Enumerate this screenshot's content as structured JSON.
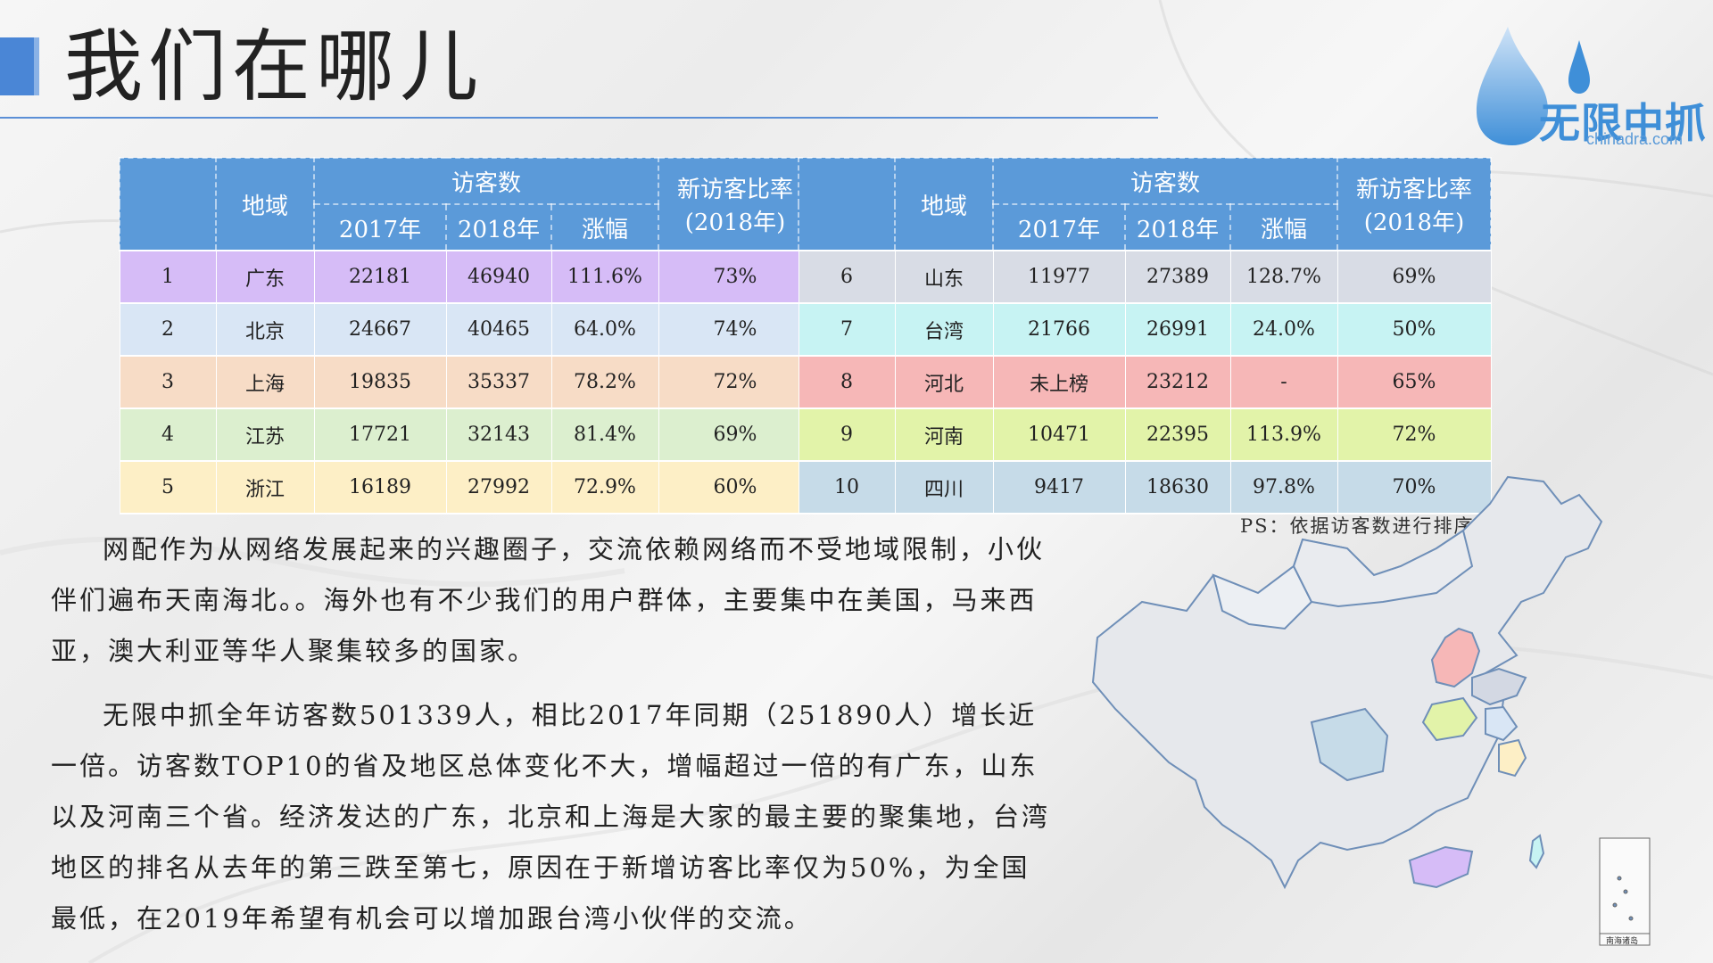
{
  "title": "我们在哪儿",
  "logo": {
    "name": "无限中抓",
    "site": "chinadra.com"
  },
  "tables": {
    "headers": {
      "rank": "",
      "region": "地域",
      "visitors": "访客数",
      "year2017": "2017年",
      "year2018": "2018年",
      "growth": "涨幅",
      "new_ratio": "新访客比率",
      "new_ratio_year": "(2018年)"
    },
    "left_rows": [
      {
        "rank": "1",
        "region": "广东",
        "y2017": "22181",
        "y2018": "46940",
        "growth": "111.6%",
        "new_ratio": "73%"
      },
      {
        "rank": "2",
        "region": "北京",
        "y2017": "24667",
        "y2018": "40465",
        "growth": "64.0%",
        "new_ratio": "74%"
      },
      {
        "rank": "3",
        "region": "上海",
        "y2017": "19835",
        "y2018": "35337",
        "growth": "78.2%",
        "new_ratio": "72%"
      },
      {
        "rank": "4",
        "region": "江苏",
        "y2017": "17721",
        "y2018": "32143",
        "growth": "81.4%",
        "new_ratio": "69%"
      },
      {
        "rank": "5",
        "region": "浙江",
        "y2017": "16189",
        "y2018": "27992",
        "growth": "72.9%",
        "new_ratio": "60%"
      }
    ],
    "right_rows": [
      {
        "rank": "6",
        "region": "山东",
        "y2017": "11977",
        "y2018": "27389",
        "growth": "128.7%",
        "new_ratio": "69%"
      },
      {
        "rank": "7",
        "region": "台湾",
        "y2017": "21766",
        "y2018": "26991",
        "growth": "24.0%",
        "new_ratio": "50%"
      },
      {
        "rank": "8",
        "region": "河北",
        "y2017": "未上榜",
        "y2018": "23212",
        "growth": "-",
        "new_ratio": "65%"
      },
      {
        "rank": "9",
        "region": "河南",
        "y2017": "10471",
        "y2018": "22395",
        "growth": "113.9%",
        "new_ratio": "72%"
      },
      {
        "rank": "10",
        "region": "四川",
        "y2017": "9417",
        "y2018": "18630",
        "growth": "97.8%",
        "new_ratio": "70%"
      }
    ]
  },
  "ps_note": "PS：依据访客数进行排序",
  "paragraphs": [
    "网配作为从网络发展起来的兴趣圈子，交流依赖网络而不受地域限制，小伙伴们遍布天南海北。。海外也有不少我们的用户群体，主要集中在美国，马来西亚，澳大利亚等华人聚集较多的国家。",
    "无限中抓全年访客数501339人，相比2017年同期（251890人）增长近一倍。访客数TOP10的省及地区总体变化不大，增幅超过一倍的有广东，山东以及河南三个省。经济发达的广东，北京和上海是大家的最主要的聚集地，台湾地区的排名从去年的第三跌至第七，原因在于新增访客比率仅为50%，为全国最低，在2019年希望有机会可以增加跟台湾小伙伴的交流。"
  ],
  "map": {
    "inset_label": "南海诸岛"
  },
  "colors": {
    "header": "#5b9ad9",
    "accent": "#4a86d6"
  }
}
